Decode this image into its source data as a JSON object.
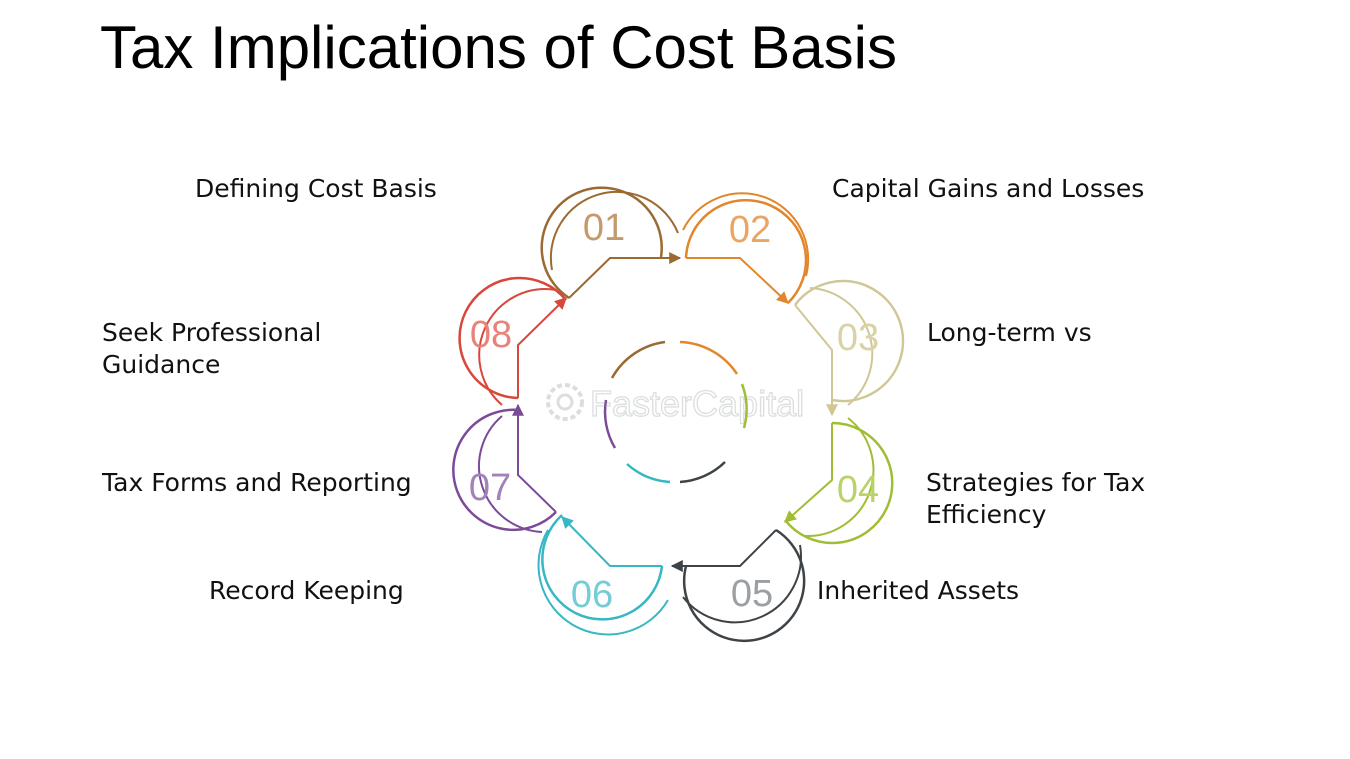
{
  "title": "Tax Implications of Cost Basis",
  "watermark": "FasterCapital",
  "steps": [
    {
      "number": "01",
      "label": "Defining Cost Basis",
      "color": "#9b6a33",
      "num_color": "#c49a6c"
    },
    {
      "number": "02",
      "label": "Capital Gains and Losses",
      "color": "#e3862b",
      "num_color": "#eaa565"
    },
    {
      "number": "03",
      "label": "Long-term vs",
      "color": "#cfc796",
      "num_color": "#d8d2a6"
    },
    {
      "number": "04",
      "label": "Strategies for Tax Efficiency",
      "label_lines": [
        "Strategies for Tax",
        "Efficiency"
      ],
      "color": "#9fbe33",
      "num_color": "#b9d26a"
    },
    {
      "number": "05",
      "label": "Inherited Assets",
      "color": "#3d4347",
      "num_color": "#9aa0a4"
    },
    {
      "number": "06",
      "label": "Record Keeping",
      "color": "#36b7c4",
      "num_color": "#74ccd6"
    },
    {
      "number": "07",
      "label": "Tax Forms and Reporting",
      "color": "#7b4a98",
      "num_color": "#a283b8"
    },
    {
      "number": "08",
      "label": "Seek Professional Guidance",
      "label_lines": [
        "Seek Professional",
        "Guidance"
      ],
      "color": "#d9463a",
      "num_color": "#e7837a"
    }
  ]
}
